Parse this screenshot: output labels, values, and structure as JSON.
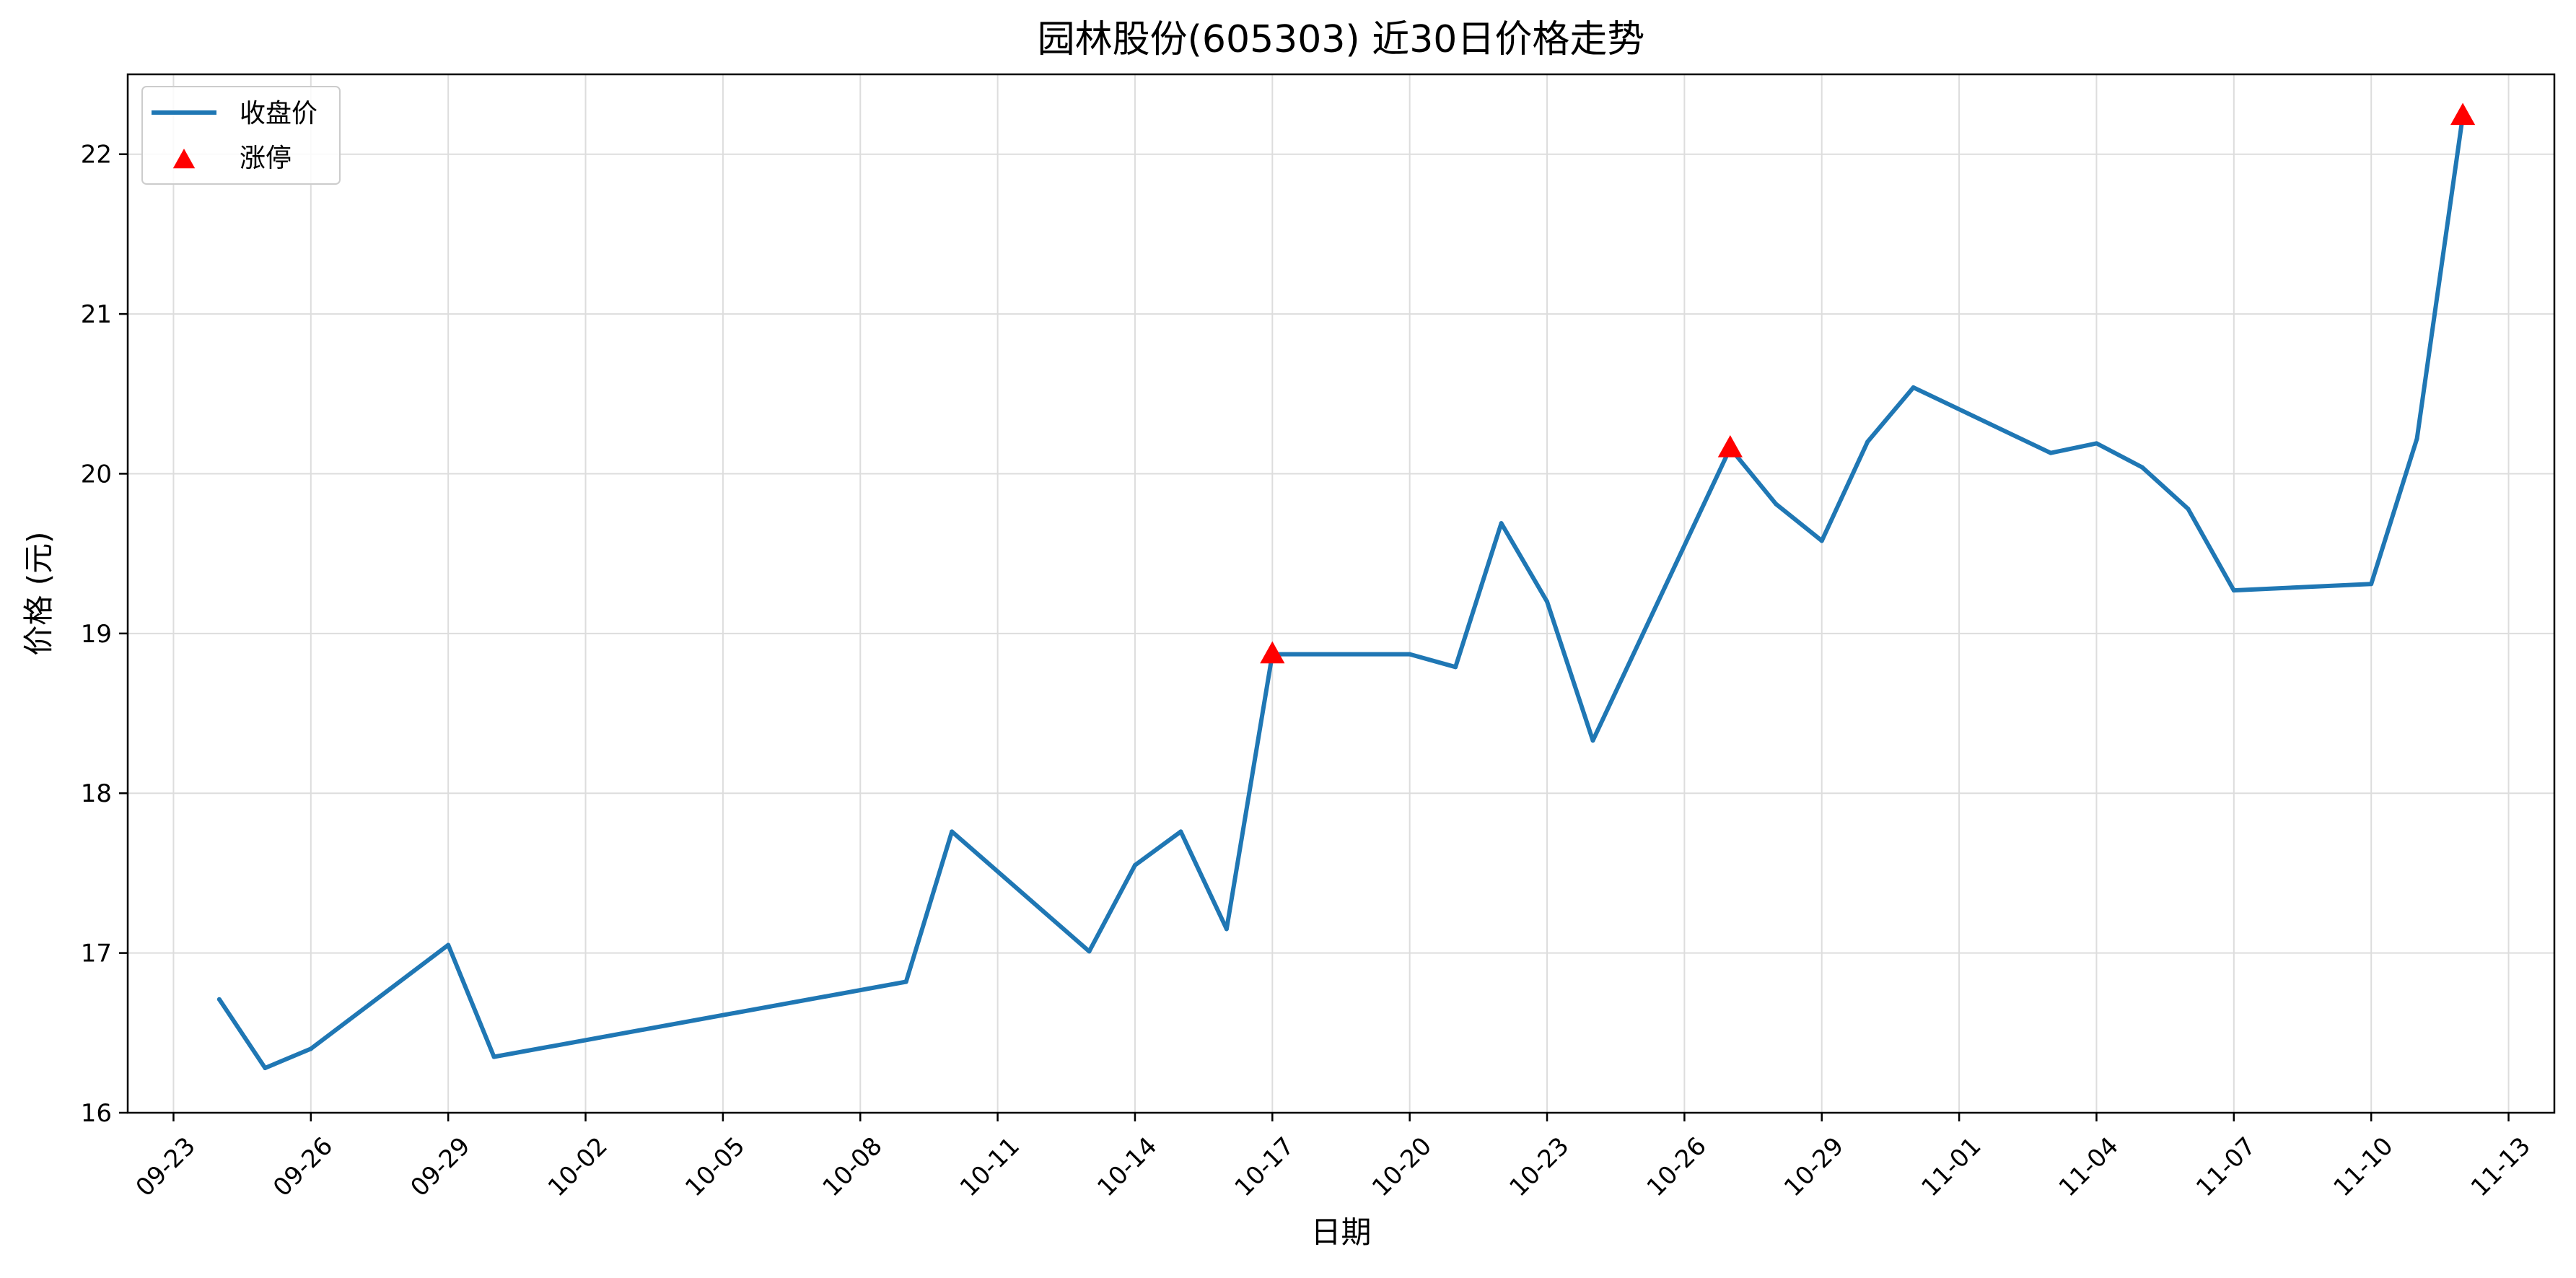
{
  "chart_data": {
    "type": "line",
    "title": "园林股份(605303) 近30日价格走势",
    "xlabel": "日期",
    "ylabel": "价格 (元)",
    "x_tick_labels": [
      "09-23",
      "09-26",
      "09-29",
      "10-02",
      "10-05",
      "10-08",
      "10-11",
      "10-14",
      "10-17",
      "10-20",
      "10-23",
      "10-26",
      "10-29",
      "11-01",
      "11-04",
      "11-07",
      "11-10",
      "11-13"
    ],
    "y_tick_labels": [
      "16",
      "17",
      "18",
      "19",
      "20",
      "21",
      "22"
    ],
    "xlim": [
      "2025-09-22",
      "2025-11-14"
    ],
    "ylim": [
      16.0,
      22.5
    ],
    "grid": true,
    "legend_position": "top-left",
    "colors": {
      "line": "#1f77b4",
      "limit_up": "#ff0000",
      "grid": "#dddddd"
    },
    "series": [
      {
        "name": "收盘价",
        "kind": "line",
        "x": [
          "2025-09-24",
          "2025-09-25",
          "2025-09-26",
          "2025-09-29",
          "2025-09-30",
          "2025-10-09",
          "2025-10-10",
          "2025-10-13",
          "2025-10-14",
          "2025-10-15",
          "2025-10-16",
          "2025-10-17",
          "2025-10-20",
          "2025-10-21",
          "2025-10-22",
          "2025-10-23",
          "2025-10-24",
          "2025-10-27",
          "2025-10-28",
          "2025-10-29",
          "2025-10-30",
          "2025-10-31",
          "2025-11-03",
          "2025-11-04",
          "2025-11-05",
          "2025-11-06",
          "2025-11-07",
          "2025-11-10",
          "2025-11-11",
          "2025-11-12"
        ],
        "values": [
          16.71,
          16.28,
          16.4,
          17.05,
          16.35,
          16.82,
          17.76,
          17.01,
          17.55,
          17.76,
          17.15,
          18.87,
          18.87,
          18.79,
          19.69,
          19.2,
          18.33,
          20.16,
          19.81,
          19.58,
          20.2,
          20.54,
          20.13,
          20.19,
          20.04,
          19.78,
          19.27,
          19.31,
          20.22,
          22.24
        ]
      },
      {
        "name": "涨停",
        "kind": "scatter",
        "marker": "triangle",
        "x": [
          "2025-10-17",
          "2025-10-27",
          "2025-11-12"
        ],
        "values": [
          18.87,
          20.16,
          22.24
        ]
      }
    ]
  }
}
